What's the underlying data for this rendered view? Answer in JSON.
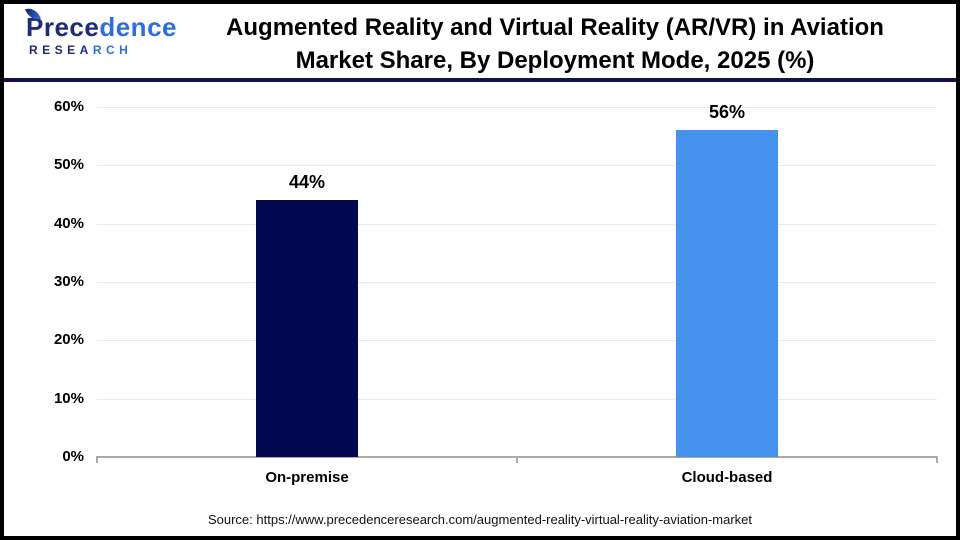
{
  "header": {
    "logo": {
      "word_dark": "Prece",
      "word_light": "dence",
      "sub_dark": "RESEA",
      "sub_light": "RCH",
      "navy_color": "#1e2c78",
      "blue_color": "#2f6fd8"
    },
    "title_line1": "Augmented Reality and Virtual Reality (AR/VR) in Aviation",
    "title_line2": "Market Share, By Deployment Mode, 2025 (%)"
  },
  "chart_data": {
    "type": "bar",
    "title": "Augmented Reality and Virtual Reality (AR/VR) in Aviation Market Share, By Deployment Mode, 2025 (%)",
    "categories": [
      "On-premise",
      "Cloud-based"
    ],
    "values": [
      44,
      56
    ],
    "value_labels": [
      "44%",
      "56%"
    ],
    "bar_colors": [
      "#02094e",
      "#4592ee"
    ],
    "unit": "%",
    "xlabel": "",
    "ylabel": "",
    "ylim": [
      0,
      60
    ],
    "ytick_step": 10,
    "ytick_labels": [
      "0%",
      "10%",
      "20%",
      "30%",
      "40%",
      "50%",
      "60%"
    ],
    "grid": true,
    "gridline_color": "#e9e9e9",
    "axis_color": "#a9a9a9",
    "legend": "none"
  },
  "footer": {
    "source": "Source: https://www.precedenceresearch.com/augmented-reality-virtual-reality-aviation-market"
  }
}
